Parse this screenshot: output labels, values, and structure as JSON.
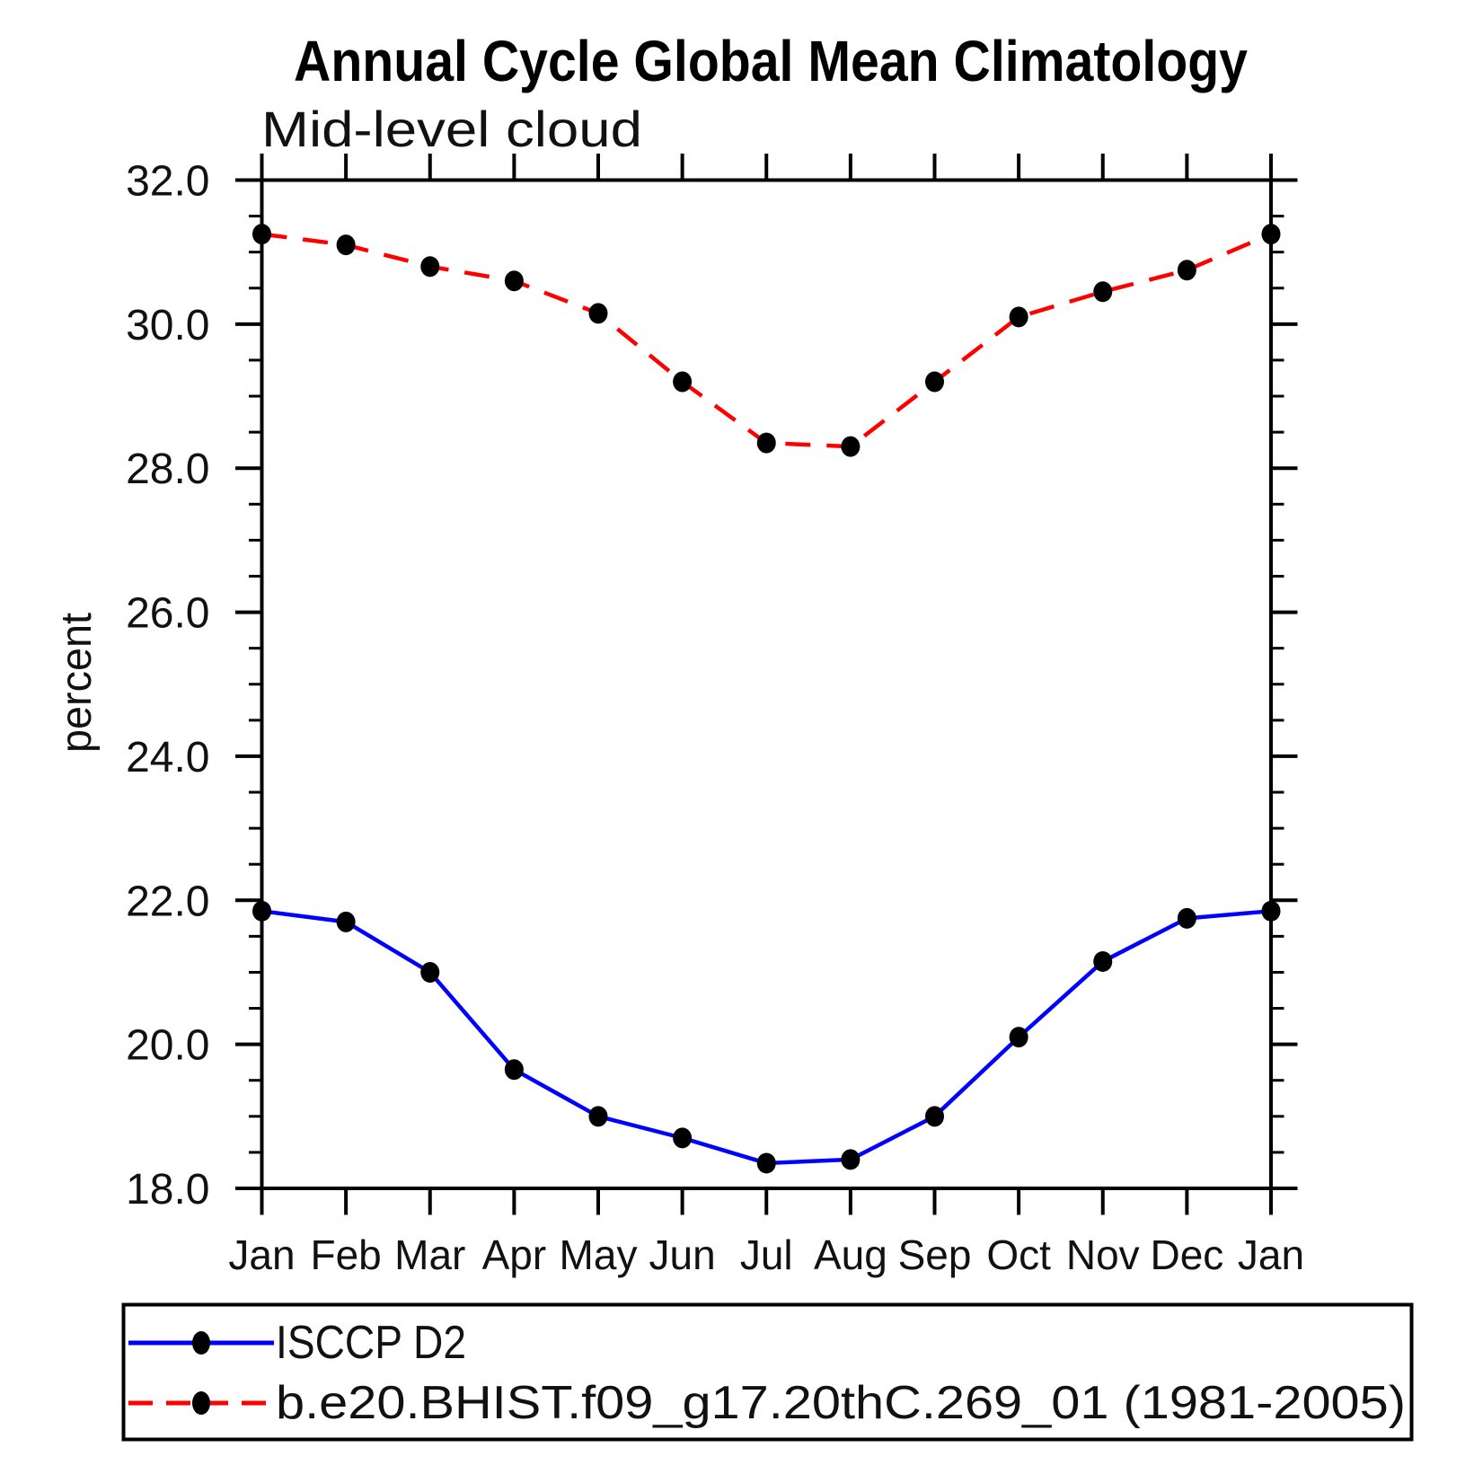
{
  "title": "Annual Cycle Global Mean Climatology",
  "subtitle": "Mid-level cloud",
  "ylabel": "percent",
  "colors": {
    "obs_line": "#0000ff",
    "model_line": "#ff0000",
    "marker": "#000000",
    "axis": "#000000",
    "background": "#ffffff"
  },
  "legend": {
    "items": [
      {
        "label": "ISCCP D2",
        "color": "#0000ff",
        "style": "solid",
        "marker": "filled-circle"
      },
      {
        "label": "b.e20.BHIST.f09_g17.20thC.269_01 (1981-2005)",
        "color": "#ff0000",
        "style": "dashed",
        "marker": "filled-circle"
      }
    ]
  },
  "chart_data": {
    "type": "line",
    "title": "Annual Cycle Global Mean Climatology",
    "subtitle": "Mid-level cloud",
    "xlabel": "",
    "ylabel": "percent",
    "categories": [
      "Jan",
      "Feb",
      "Mar",
      "Apr",
      "May",
      "Jun",
      "Jul",
      "Aug",
      "Sep",
      "Oct",
      "Nov",
      "Dec",
      "Jan"
    ],
    "series": [
      {
        "name": "ISCCP D2",
        "color": "#0000ff",
        "line_style": "solid",
        "marker": "filled-circle",
        "marker_color": "#000000",
        "values": [
          21.85,
          21.7,
          21.0,
          19.65,
          19.0,
          18.7,
          18.35,
          18.4,
          19.0,
          20.1,
          21.15,
          21.75,
          21.85
        ]
      },
      {
        "name": "b.e20.BHIST.f09_g17.20thC.269_01 (1981-2005)",
        "color": "#ff0000",
        "line_style": "dashed",
        "marker": "filled-circle",
        "marker_color": "#000000",
        "values": [
          31.25,
          31.1,
          30.8,
          30.6,
          30.15,
          29.2,
          28.35,
          28.3,
          29.2,
          30.1,
          30.45,
          30.75,
          31.25
        ]
      }
    ],
    "ylim": [
      18.0,
      32.0
    ],
    "ytick_major_interval": 2.0,
    "ytick_minor_interval": 0.5,
    "ytick_labels": [
      "18.0",
      "20.0",
      "22.0",
      "24.0",
      "26.0",
      "28.0",
      "30.0",
      "32.0"
    ],
    "grid": false,
    "legend_position": "bottom"
  }
}
